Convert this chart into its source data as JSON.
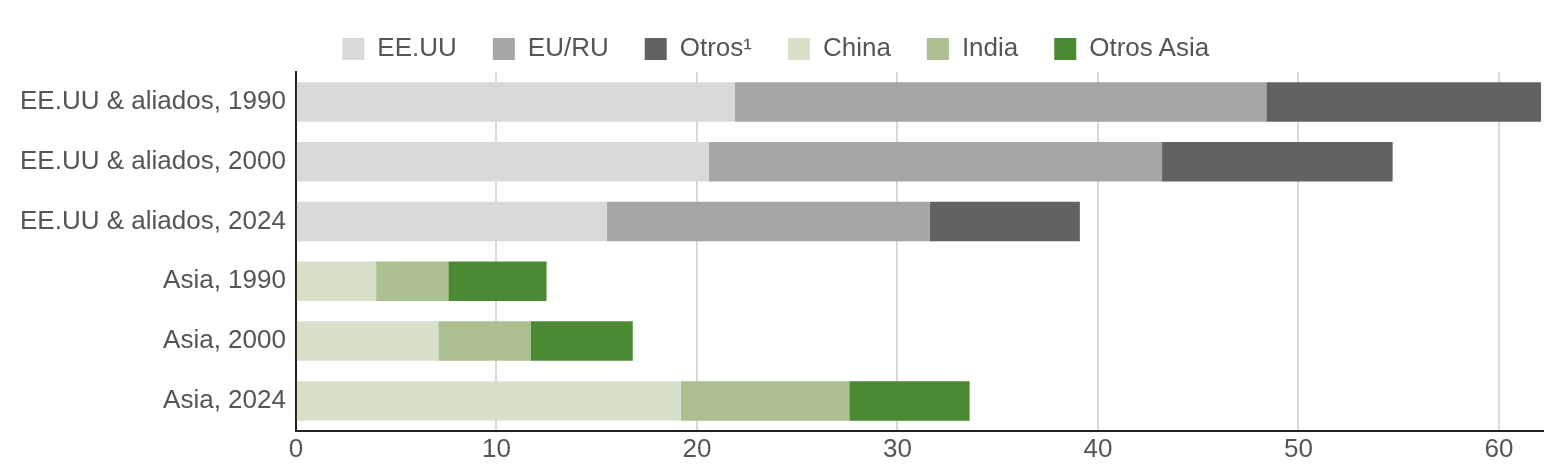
{
  "chart_data": {
    "type": "bar",
    "orientation": "horizontal",
    "stacked": true,
    "legend": "top",
    "grid": "x",
    "categories": [
      "EE.UU & aliados, 1990",
      "EE.UU & aliados, 2000",
      "EE.UU & aliados, 2024",
      "Asia, 1990",
      "Asia, 2000",
      "Asia, 2024"
    ],
    "xlim": [
      0,
      62.2
    ],
    "xticks": [
      0,
      10,
      20,
      30,
      40,
      50,
      60
    ],
    "series": [
      {
        "name": "EE.UU",
        "color": "#d9d9d9",
        "values": [
          21.9,
          20.6,
          15.5,
          null,
          null,
          null
        ]
      },
      {
        "name": "EU/RU",
        "color": "#a6a6a6",
        "values": [
          26.5,
          22.6,
          16.1,
          null,
          null,
          null
        ]
      },
      {
        "name": "Otros¹",
        "color": "#626262",
        "values": [
          13.7,
          11.5,
          7.5,
          null,
          null,
          null
        ]
      },
      {
        "name": "China",
        "color": "#d7e0c8",
        "values": [
          null,
          null,
          null,
          4.0,
          7.1,
          19.2
        ]
      },
      {
        "name": "India",
        "color": "#abbf90",
        "values": [
          null,
          null,
          null,
          3.6,
          4.6,
          8.4
        ]
      },
      {
        "name": "Otros Asia",
        "color": "#4a8a32",
        "values": [
          null,
          null,
          null,
          4.9,
          5.1,
          6.0
        ]
      }
    ]
  }
}
